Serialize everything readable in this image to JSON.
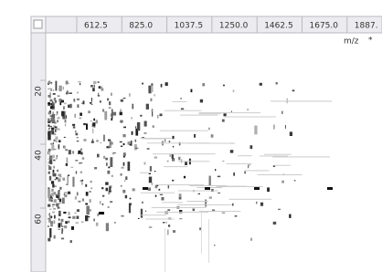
{
  "ruler_top": {
    "labels": [
      "612.5",
      "825.0",
      "1037.5",
      "1250.0",
      "1462.5",
      "1675.0",
      "1887."
    ]
  },
  "axis_label": "m/z",
  "axis_marker": "*",
  "ruler_left": {
    "labels": [
      "20",
      "40",
      "60"
    ]
  }
}
